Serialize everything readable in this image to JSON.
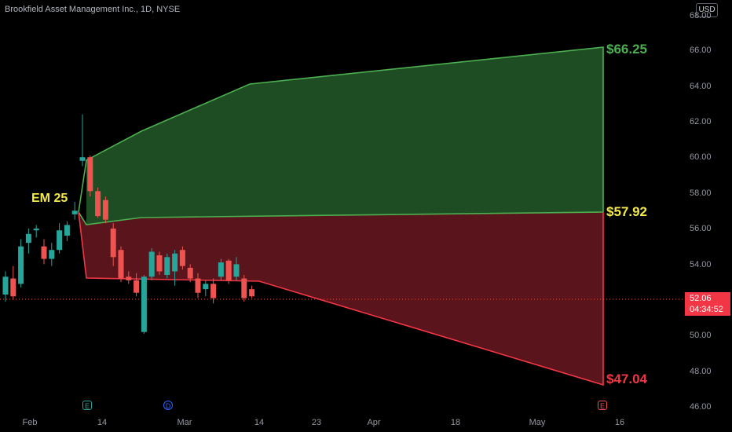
{
  "header": {
    "symbol_line": "Brookfield Asset Management Inc., 1D, NYSE",
    "currency": "USD"
  },
  "levels": {
    "upper": "$66.25",
    "mid": "$57.92",
    "lower": "$47.04"
  },
  "em_label": "EM 25",
  "price_tag": {
    "price": "52.06",
    "countdown": "04:34:52"
  },
  "y_axis": {
    "ticks": [
      "66.00",
      "64.00",
      "62.00",
      "60.00",
      "58.00",
      "56.00",
      "54.00",
      "52.00",
      "50.00",
      "48.00",
      "46.00"
    ]
  },
  "x_axis": {
    "ticks": [
      "Feb",
      "14",
      "Mar",
      "14",
      "23",
      "Apr",
      "18",
      "May",
      "16"
    ]
  },
  "events": [
    "E",
    "D",
    "E"
  ],
  "colors": {
    "up": "#26a69a",
    "down": "#ef5350",
    "upper_zone": "#1e4d23",
    "lower_zone": "#5a141b",
    "upper_line": "#4caf50",
    "lower_line": "#f23645",
    "em": "#f5e94a"
  },
  "chart_data": {
    "type": "candlestick",
    "ylim": [
      45.5,
      67.5
    ],
    "candles": [
      {
        "o": 52.3,
        "h": 53.6,
        "l": 51.9,
        "c": 53.3
      },
      {
        "o": 53.2,
        "h": 53.9,
        "l": 52.0,
        "c": 52.2
      },
      {
        "o": 52.9,
        "h": 55.4,
        "l": 52.7,
        "c": 55.0
      },
      {
        "o": 55.2,
        "h": 56.0,
        "l": 54.6,
        "c": 55.7
      },
      {
        "o": 55.9,
        "h": 56.2,
        "l": 55.5,
        "c": 56.0
      },
      {
        "o": 55.0,
        "h": 55.4,
        "l": 54.0,
        "c": 54.3
      },
      {
        "o": 54.3,
        "h": 55.2,
        "l": 53.9,
        "c": 54.8
      },
      {
        "o": 54.8,
        "h": 56.3,
        "l": 54.6,
        "c": 55.9
      },
      {
        "o": 55.6,
        "h": 56.4,
        "l": 55.3,
        "c": 56.2
      },
      {
        "o": 56.8,
        "h": 57.5,
        "l": 56.5,
        "c": 57.0
      },
      {
        "o": 59.8,
        "h": 62.4,
        "l": 59.5,
        "c": 60.0
      },
      {
        "o": 60.0,
        "h": 60.1,
        "l": 57.8,
        "c": 58.1
      },
      {
        "o": 58.1,
        "h": 58.3,
        "l": 56.6,
        "c": 56.7
      },
      {
        "o": 57.6,
        "h": 57.8,
        "l": 56.3,
        "c": 56.5
      },
      {
        "o": 56.0,
        "h": 56.3,
        "l": 53.9,
        "c": 54.4
      },
      {
        "o": 54.8,
        "h": 55.0,
        "l": 53.0,
        "c": 53.2
      },
      {
        "o": 53.3,
        "h": 53.6,
        "l": 52.9,
        "c": 53.1
      },
      {
        "o": 53.1,
        "h": 53.5,
        "l": 52.2,
        "c": 52.4
      },
      {
        "o": 50.2,
        "h": 53.4,
        "l": 50.1,
        "c": 53.3
      },
      {
        "o": 53.3,
        "h": 54.9,
        "l": 53.1,
        "c": 54.7
      },
      {
        "o": 54.5,
        "h": 54.7,
        "l": 53.4,
        "c": 53.6
      },
      {
        "o": 53.4,
        "h": 54.6,
        "l": 53.2,
        "c": 54.4
      },
      {
        "o": 53.6,
        "h": 54.8,
        "l": 52.8,
        "c": 54.6
      },
      {
        "o": 54.8,
        "h": 55.0,
        "l": 53.7,
        "c": 53.9
      },
      {
        "o": 53.8,
        "h": 54.0,
        "l": 53.0,
        "c": 53.2
      },
      {
        "o": 53.2,
        "h": 53.5,
        "l": 52.1,
        "c": 52.4
      },
      {
        "o": 52.6,
        "h": 53.1,
        "l": 52.2,
        "c": 52.9
      },
      {
        "o": 52.9,
        "h": 53.2,
        "l": 51.8,
        "c": 52.1
      },
      {
        "o": 53.3,
        "h": 54.3,
        "l": 53.1,
        "c": 54.1
      },
      {
        "o": 54.2,
        "h": 54.3,
        "l": 52.9,
        "c": 53.1
      },
      {
        "o": 53.3,
        "h": 54.4,
        "l": 53.1,
        "c": 54.0
      },
      {
        "o": 53.2,
        "h": 53.4,
        "l": 51.9,
        "c": 52.1
      },
      {
        "o": 52.6,
        "h": 52.8,
        "l": 52.1,
        "c": 52.2
      }
    ]
  }
}
